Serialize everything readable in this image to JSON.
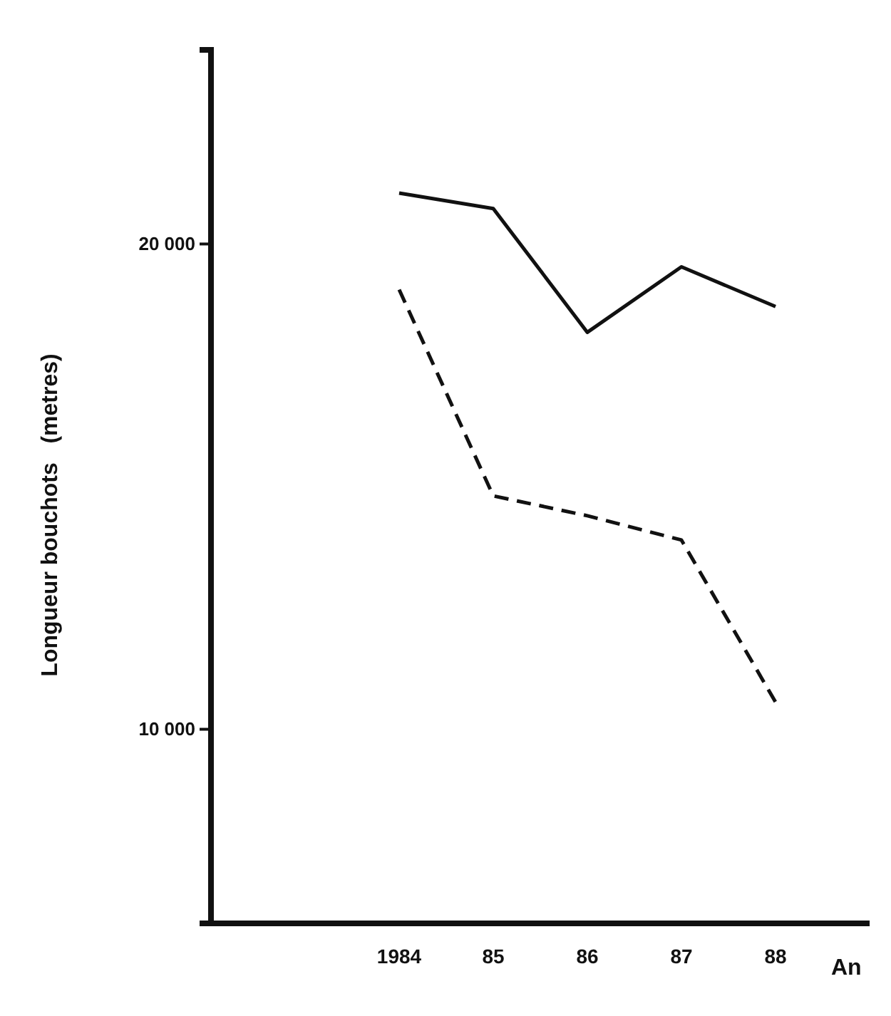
{
  "chart_data": {
    "type": "line",
    "xlabel": "An",
    "ylabel": "Longueur bouchots   (metres)",
    "x": [
      1984,
      1985,
      1986,
      1987,
      1988
    ],
    "xlim": [
      1982,
      1989
    ],
    "xticks": [
      {
        "value": 1984,
        "label": "1984"
      },
      {
        "value": 1985,
        "label": "85"
      },
      {
        "value": 1986,
        "label": "86"
      },
      {
        "value": 1987,
        "label": "87"
      },
      {
        "value": 1988,
        "label": "88"
      }
    ],
    "ylim": [
      6000,
      24000
    ],
    "yticks": [
      {
        "value": 10000,
        "label": "10 000"
      },
      {
        "value": 20000,
        "label": "20 000"
      }
    ],
    "grid": false,
    "marker": "none",
    "series": [
      {
        "color": "#111111",
        "line_style": "solid",
        "values": [
          21050,
          20730,
          18180,
          19530,
          18710
        ]
      },
      {
        "color": "#111111",
        "line_style": "dashed",
        "values": [
          19060,
          14810,
          14400,
          13900,
          10560
        ]
      }
    ]
  }
}
